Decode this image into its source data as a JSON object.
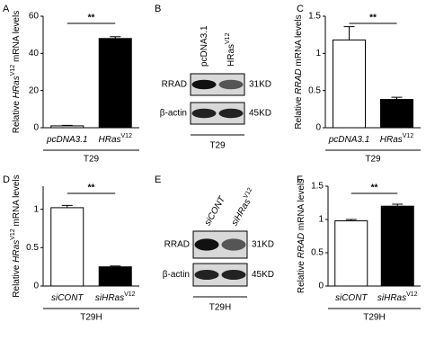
{
  "panels": [
    "A",
    "B",
    "C",
    "D",
    "E",
    "F"
  ],
  "chart_data": [
    {
      "type": "bar",
      "panel": 0,
      "ylabel": [
        {
          "text": "Relative "
        },
        {
          "text": "HRas",
          "italic": true
        },
        {
          "text": "V12",
          "sup": true
        },
        {
          "text": " mRNA levels"
        }
      ],
      "categories": [
        [
          {
            "text": "pcDNA3.1",
            "italic": true
          }
        ],
        [
          {
            "text": "HRas",
            "italic": true
          },
          {
            "text": "V12",
            "sup": true
          }
        ]
      ],
      "values": [
        1,
        48
      ],
      "errors": [
        0.3,
        1
      ],
      "colors": [
        "#ffffff",
        "#000000"
      ],
      "ylim": [
        0,
        60
      ],
      "yticks": [
        0,
        20,
        40,
        60
      ],
      "significance": "**",
      "group": "T29"
    },
    {
      "type": "bar",
      "panel": 2,
      "ylabel": [
        {
          "text": "Relative "
        },
        {
          "text": "RRAD",
          "italic": true
        },
        {
          "text": " mRNA levels"
        }
      ],
      "categories": [
        [
          {
            "text": "pcDNA3.1",
            "italic": true
          }
        ],
        [
          {
            "text": "HRas",
            "italic": true
          },
          {
            "text": "V12",
            "sup": true
          }
        ]
      ],
      "values": [
        1.18,
        0.38
      ],
      "errors": [
        0.18,
        0.03
      ],
      "colors": [
        "#ffffff",
        "#000000"
      ],
      "ylim": [
        0,
        1.5
      ],
      "yticks": [
        0,
        0.5,
        1,
        1.5
      ],
      "significance": "**",
      "group": "T29"
    },
    {
      "type": "bar",
      "panel": 3,
      "ylabel": [
        {
          "text": "Relative "
        },
        {
          "text": "HRas",
          "italic": true
        },
        {
          "text": "V12",
          "sup": true
        },
        {
          "text": " mRNA levels"
        }
      ],
      "categories": [
        [
          {
            "text": "siCONT",
            "italic": true
          }
        ],
        [
          {
            "text": "siHRas",
            "italic": true
          },
          {
            "text": "V12",
            "sup": true
          }
        ]
      ],
      "values": [
        1.02,
        0.25
      ],
      "errors": [
        0.03,
        0.01
      ],
      "colors": [
        "#ffffff",
        "#000000"
      ],
      "ylim": [
        0,
        1.3
      ],
      "yticks": [
        0,
        0.5,
        1
      ],
      "significance": "**",
      "group": "T29H"
    },
    {
      "type": "bar",
      "panel": 5,
      "ylabel": [
        {
          "text": "Relative "
        },
        {
          "text": "RRAD",
          "italic": true
        },
        {
          "text": " mRNA levels"
        }
      ],
      "categories": [
        [
          {
            "text": "siCONT",
            "italic": true
          }
        ],
        [
          {
            "text": "siHRas",
            "italic": true
          },
          {
            "text": "V12",
            "sup": true
          }
        ]
      ],
      "values": [
        0.98,
        1.2
      ],
      "errors": [
        0.02,
        0.03
      ],
      "colors": [
        "#ffffff",
        "#000000"
      ],
      "ylim": [
        0,
        1.5
      ],
      "yticks": [
        0,
        0.5,
        1,
        1.5
      ],
      "significance": "**",
      "group": "T29H"
    }
  ],
  "blots": [
    {
      "panel": 1,
      "lanes": [
        [
          {
            "text": "pcDNA3.1"
          }
        ],
        [
          {
            "text": "HRas"
          },
          {
            "text": "V12",
            "sup": true
          }
        ]
      ],
      "rows": [
        {
          "label": "RRAD",
          "size": "31KD"
        },
        {
          "label": "β-actin",
          "size": "45KD"
        }
      ],
      "group": "T29"
    },
    {
      "panel": 4,
      "lanes": [
        [
          {
            "text": "siCONT",
            "italic": true
          }
        ],
        [
          {
            "text": "siHRas",
            "italic": true
          },
          {
            "text": "V12",
            "sup": true
          }
        ]
      ],
      "rows": [
        {
          "label": "RRAD",
          "size": "31KD"
        },
        {
          "label": "β-actin",
          "size": "45KD"
        }
      ],
      "group": "T29H"
    }
  ]
}
